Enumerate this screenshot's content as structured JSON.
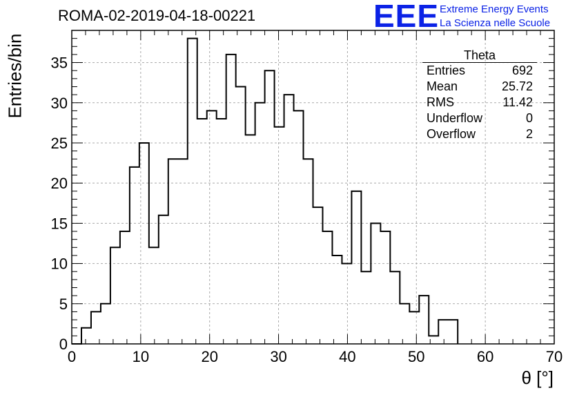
{
  "title": "ROMA-02-2019-04-18-00221",
  "logo": {
    "mark": "EEE",
    "line1": "Extreme Energy Events",
    "line2": "La Scienza nelle Scuole",
    "color": "#0b22e6"
  },
  "stats_box": {
    "title": "Theta",
    "rows": [
      {
        "label": "Entries",
        "value": "692"
      },
      {
        "label": "Mean",
        "value": "25.72"
      },
      {
        "label": "RMS",
        "value": "11.42"
      },
      {
        "label": "Underflow",
        "value": "0"
      },
      {
        "label": "Overflow",
        "value": "2"
      }
    ]
  },
  "chart_data": {
    "type": "bar",
    "histogram": true,
    "title": "ROMA-02-2019-04-18-00221",
    "xlabel": "θ [°]",
    "ylabel": "Entries/bin",
    "xlim": [
      0,
      70
    ],
    "ylim": [
      0,
      39
    ],
    "grid": true,
    "x_ticks": [
      0,
      10,
      20,
      30,
      40,
      50,
      60,
      70
    ],
    "y_ticks": [
      0,
      5,
      10,
      15,
      20,
      25,
      30,
      35
    ],
    "bin_edges": [
      0,
      1.4,
      2.8,
      4.2,
      5.6,
      7.0,
      8.4,
      9.8,
      11.2,
      12.6,
      14.0,
      15.4,
      16.8,
      18.2,
      19.6,
      21.0,
      22.4,
      23.8,
      25.2,
      26.6,
      28.0,
      29.4,
      30.8,
      32.2,
      33.6,
      35.0,
      36.4,
      37.8,
      39.2,
      40.6,
      42.0,
      43.4,
      44.8,
      46.2,
      47.6,
      49.0,
      50.4,
      51.8,
      53.2,
      54.6,
      56.0
    ],
    "values": [
      0,
      2,
      4,
      5,
      12,
      14,
      22,
      25,
      12,
      16,
      23,
      23,
      38,
      28,
      29,
      28,
      36,
      32,
      26,
      30,
      34,
      27,
      31,
      29,
      23,
      17,
      14,
      11,
      10,
      19,
      9,
      15,
      14,
      9,
      5,
      4,
      6,
      1,
      3,
      3
    ]
  }
}
